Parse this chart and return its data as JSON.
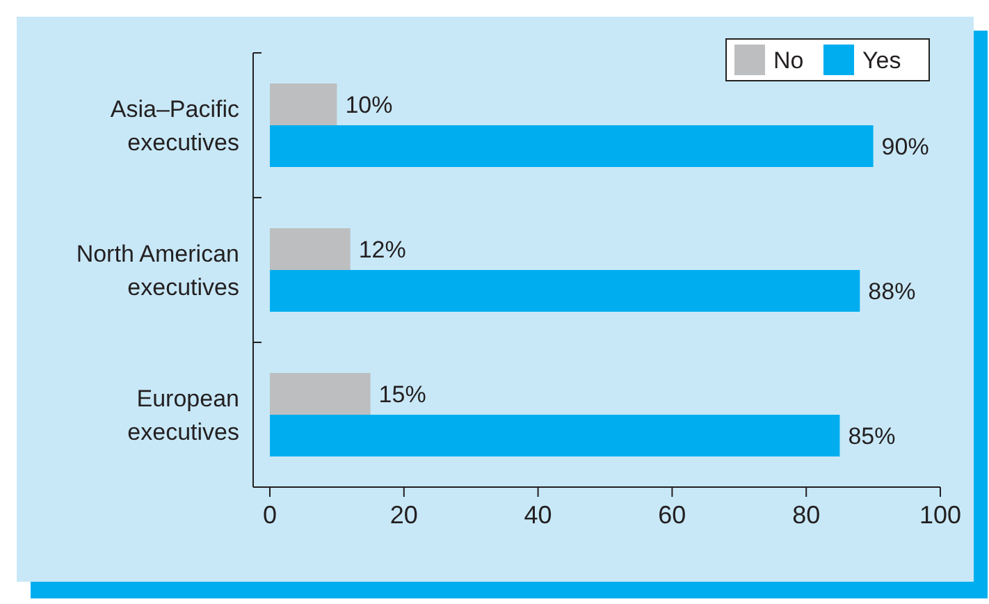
{
  "chart_data": {
    "type": "bar",
    "orientation": "horizontal",
    "categories": [
      "Asia–Pacific\nexecutives",
      "North American\nexecutives",
      "European\nexecutives"
    ],
    "series": [
      {
        "name": "No",
        "color": "#bcbec0",
        "values": [
          10,
          12,
          15
        ],
        "value_labels": [
          "10%",
          "12%",
          "15%"
        ]
      },
      {
        "name": "Yes",
        "color": "#00aeef",
        "values": [
          90,
          88,
          85
        ],
        "value_labels": [
          "90%",
          "88%",
          "85%"
        ]
      }
    ],
    "xlim": [
      0,
      100
    ],
    "xticks": [
      0,
      20,
      40,
      60,
      80,
      100
    ],
    "legend": "top right",
    "grid": false
  }
}
